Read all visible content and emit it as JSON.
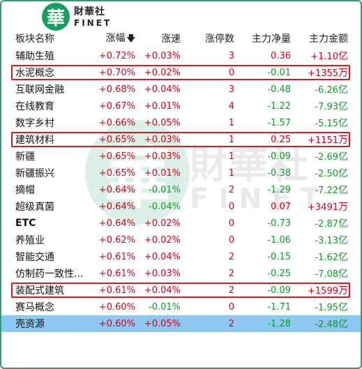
{
  "brand": {
    "mark": "華",
    "name_cn": "財華社",
    "name_en": "FINET"
  },
  "watermark": {
    "mark": "華",
    "name_cn": "財華社",
    "name_en": "FINET"
  },
  "colors": {
    "up": "#d9001b",
    "down": "#109a2a",
    "highlight_border": "#e0161e",
    "selected_row": "#8cc8f2",
    "frame": "#2e9e6a"
  },
  "header": {
    "name": "板块名称",
    "change": "涨幅",
    "sort_icon": "arrow-down-icon",
    "speed": "涨速",
    "limit_up": "涨停数",
    "net_inflow": "主力净量",
    "amount": "主力金额"
  },
  "rows": [
    {
      "name": "辅助生殖",
      "change": "+0.72%",
      "speed": "+0.03%",
      "limit_up": "3",
      "net": "0.36",
      "amount": "+1.10",
      "unit": "亿",
      "speed_up": true,
      "net_up": true,
      "highlight": false,
      "selected": false
    },
    {
      "name": "水泥概念",
      "change": "+0.70%",
      "speed": "+0.02%",
      "limit_up": "0",
      "net": "-0.01",
      "amount": "+1355",
      "unit": "万",
      "speed_up": true,
      "net_up": false,
      "amount_up": true,
      "highlight": true,
      "selected": false
    },
    {
      "name": "互联网金融",
      "change": "+0.68%",
      "speed": "+0.04%",
      "limit_up": "3",
      "net": "-0.48",
      "amount": "-6.26",
      "unit": "亿",
      "speed_up": true,
      "net_up": false,
      "highlight": false,
      "selected": false
    },
    {
      "name": "在线教育",
      "change": "+0.67%",
      "speed": "+0.01%",
      "limit_up": "4",
      "net": "-1.22",
      "amount": "-7.93",
      "unit": "亿",
      "speed_up": true,
      "net_up": false,
      "highlight": false,
      "selected": false
    },
    {
      "name": "数字乡村",
      "change": "+0.66%",
      "speed": "+0.05%",
      "limit_up": "1",
      "net": "-1.57",
      "amount": "-5.15",
      "unit": "亿",
      "speed_up": true,
      "net_up": false,
      "highlight": false,
      "selected": false
    },
    {
      "name": "建筑材料",
      "change": "+0.65%",
      "speed": "+0.03%",
      "limit_up": "1",
      "net": "0.25",
      "amount": "+1151",
      "unit": "万",
      "speed_up": true,
      "net_up": true,
      "amount_up": true,
      "highlight": true,
      "selected": false
    },
    {
      "name": "新疆",
      "change": "+0.65%",
      "speed": "+0.03%",
      "limit_up": "1",
      "net": "-0.09",
      "amount": "-2.69",
      "unit": "亿",
      "speed_up": true,
      "net_up": false,
      "highlight": false,
      "selected": false
    },
    {
      "name": "新疆振兴",
      "change": "+0.65%",
      "speed": "+0.01%",
      "limit_up": "1",
      "net": "-0.38",
      "amount": "-2.50",
      "unit": "亿",
      "speed_up": true,
      "net_up": false,
      "highlight": false,
      "selected": false
    },
    {
      "name": "摘帽",
      "change": "+0.64%",
      "speed": "-0.01%",
      "limit_up": "2",
      "net": "-1.29",
      "amount": "-7.22",
      "unit": "亿",
      "speed_up": false,
      "net_up": false,
      "highlight": false,
      "selected": false
    },
    {
      "name": "超级真菌",
      "change": "+0.64%",
      "speed": "-0.04%",
      "limit_up": "0",
      "net": "0.07",
      "amount": "+3491",
      "unit": "万",
      "speed_up": false,
      "net_up": true,
      "amount_up": true,
      "highlight": false,
      "selected": false
    },
    {
      "name": "ETC",
      "change": "+0.64%",
      "speed": "+0.02%",
      "limit_up": "0",
      "net": "-0.73",
      "amount": "-2.87",
      "unit": "亿",
      "speed_up": true,
      "net_up": false,
      "highlight": false,
      "selected": false,
      "bold_name": true
    },
    {
      "name": "养殖业",
      "change": "+0.62%",
      "speed": "+0.02%",
      "limit_up": "0",
      "net": "-1.06",
      "amount": "-3.13",
      "unit": "亿",
      "speed_up": true,
      "net_up": false,
      "highlight": false,
      "selected": false
    },
    {
      "name": "智能交通",
      "change": "+0.61%",
      "speed": "+0.04%",
      "limit_up": "2",
      "net": "-0.15",
      "amount": "-1.62",
      "unit": "亿",
      "speed_up": true,
      "net_up": false,
      "highlight": false,
      "selected": false
    },
    {
      "name": "仿制药一致性...",
      "change": "+0.61%",
      "speed": "+0.03%",
      "limit_up": "2",
      "net": "-0.25",
      "amount": "-7.08",
      "unit": "亿",
      "speed_up": true,
      "net_up": false,
      "highlight": false,
      "selected": false
    },
    {
      "name": "装配式建筑",
      "change": "+0.61%",
      "speed": "+0.04%",
      "limit_up": "2",
      "net": "-0.09",
      "amount": "+1599",
      "unit": "万",
      "speed_up": true,
      "net_up": false,
      "amount_up": true,
      "highlight": true,
      "selected": false
    },
    {
      "name": "赛马概念",
      "change": "+0.60%",
      "speed": "-0.01%",
      "limit_up": "0",
      "net": "-1.71",
      "amount": "-1.95",
      "unit": "亿",
      "speed_up": false,
      "net_up": false,
      "highlight": false,
      "selected": false
    },
    {
      "name": "壳资源",
      "change": "+0.60%",
      "speed": "+0.05%",
      "limit_up": "2",
      "net": "-1.28",
      "amount": "-2.48",
      "unit": "亿",
      "speed_up": true,
      "net_up": false,
      "highlight": false,
      "selected": true
    }
  ]
}
